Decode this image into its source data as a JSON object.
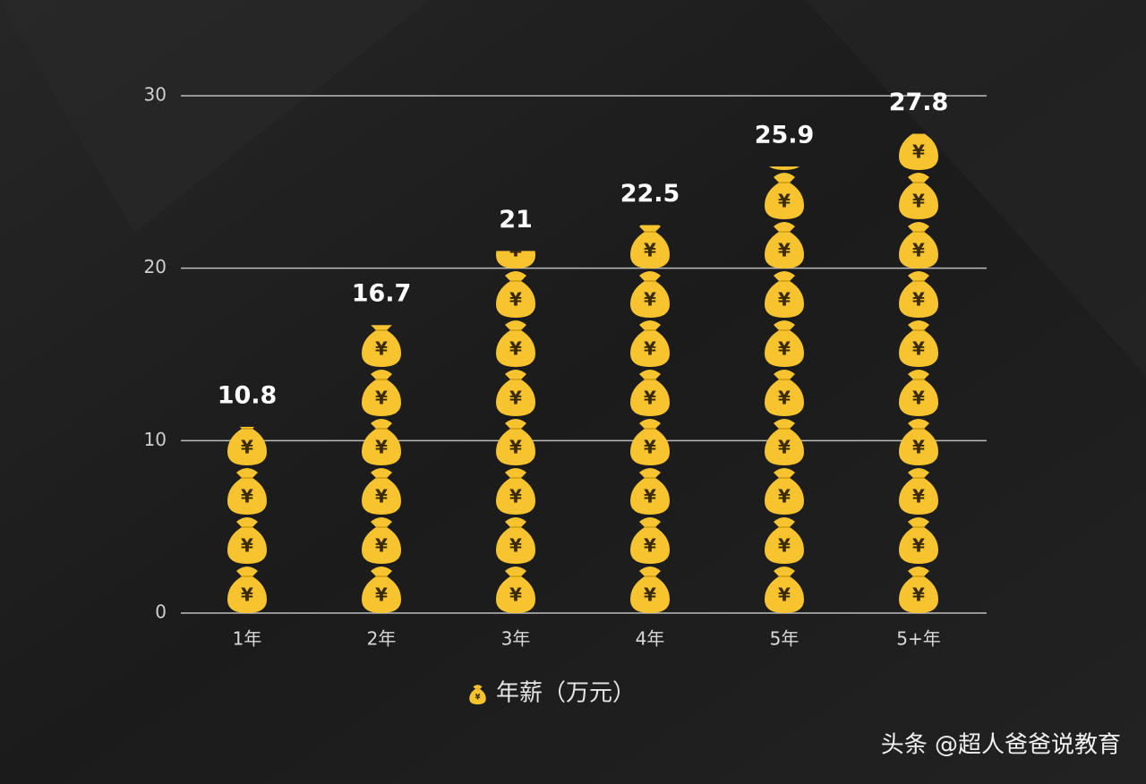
{
  "chart_data": {
    "type": "pictograph_bar",
    "categories": [
      "1年",
      "2年",
      "3年",
      "4年",
      "5年",
      "5+年"
    ],
    "series": [
      {
        "name": "年薪（万元）",
        "color": "#f7c42f",
        "values": [
          10.8,
          16.7,
          21,
          22.5,
          25.9,
          27.8
        ]
      }
    ],
    "ylim": [
      0,
      30
    ],
    "yticks": [
      0,
      10,
      20,
      30
    ],
    "grid": true,
    "legend": "bottom",
    "watermark": "头条 @超人爸爸说教育"
  }
}
